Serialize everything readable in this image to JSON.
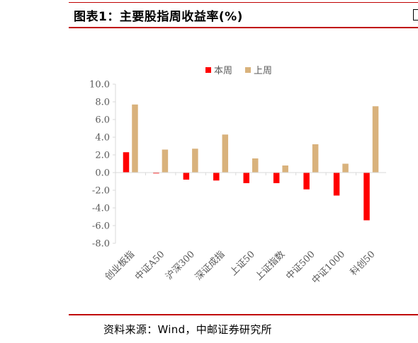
{
  "header": {
    "title": "图表1：主要股指周收益率(%)"
  },
  "footer": {
    "source": "资料来源：Wind，中邮证券研究所"
  },
  "colors": {
    "accent_rule": "#c00000",
    "series_this_week": "#ff0000",
    "series_last_week": "#d9b27c"
  },
  "chart_data": {
    "type": "bar",
    "categories": [
      "创业板指",
      "中证A50",
      "沪深300",
      "深证成指",
      "上证50",
      "上证指数",
      "中证500",
      "中证1000",
      "科创50"
    ],
    "series": [
      {
        "name": "本周",
        "values": [
          2.3,
          -0.1,
          -0.8,
          -0.9,
          -1.2,
          -1.2,
          -1.9,
          -2.6,
          -5.4
        ]
      },
      {
        "name": "上周",
        "values": [
          7.7,
          2.6,
          2.7,
          4.3,
          1.6,
          0.8,
          3.2,
          1.0,
          7.5
        ]
      }
    ],
    "ylim": [
      -8.0,
      10.0
    ],
    "yticks": [
      "10.0",
      "8.0",
      "6.0",
      "4.0",
      "2.0",
      "0.0",
      "-2.0",
      "-4.0",
      "-6.0",
      "-8.0"
    ],
    "ytick_values": [
      10,
      8,
      6,
      4,
      2,
      0,
      -2,
      -4,
      -6,
      -8
    ],
    "legend_position": "top-center",
    "grid": false,
    "xlabel": "",
    "ylabel": ""
  }
}
